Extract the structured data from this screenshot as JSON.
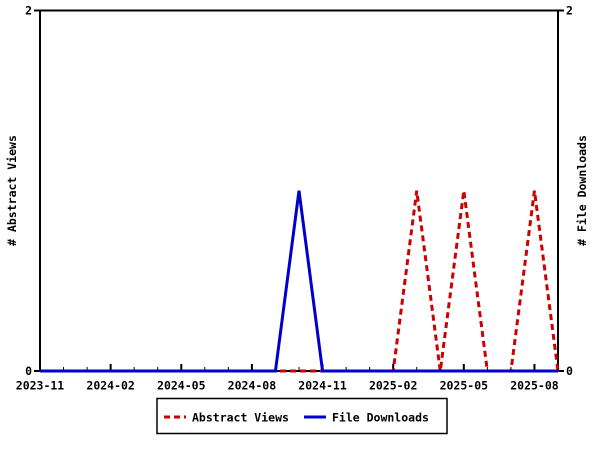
{
  "window": {
    "background": "#ffffff",
    "axis_color": "#000000"
  },
  "chart_data": {
    "type": "line",
    "x": [
      "2023-11",
      "2023-12",
      "2024-01",
      "2024-02",
      "2024-03",
      "2024-04",
      "2024-05",
      "2024-06",
      "2024-07",
      "2024-08",
      "2024-09",
      "2024-10",
      "2024-11",
      "2024-12",
      "2025-01",
      "2025-02",
      "2025-03",
      "2025-04",
      "2025-05",
      "2025-06",
      "2025-07",
      "2025-08",
      "2025-09"
    ],
    "x_tick_labels": [
      "2023-11",
      "2024-02",
      "2024-05",
      "2024-08",
      "2024-11",
      "2025-02",
      "2025-05",
      "2025-08"
    ],
    "x_major_every": 3,
    "ylim": [
      0,
      2
    ],
    "y_tick_values": [
      0,
      2
    ],
    "y_tick_labels": [
      "0",
      "2"
    ],
    "ylabel_left": "# Abstract Views",
    "ylabel_right": "# File Downloads",
    "grid": false,
    "legend_position": "bottom-center",
    "series": [
      {
        "name": "Abstract Views",
        "color": "#cc0000",
        "line_style": "dashed",
        "axis": "left",
        "values": [
          0,
          0,
          0,
          0,
          0,
          0,
          0,
          0,
          0,
          0,
          0,
          0,
          0,
          0,
          0,
          0,
          1,
          0,
          1,
          0,
          0,
          1,
          0
        ]
      },
      {
        "name": "File Downloads",
        "color": "#0000cc",
        "line_style": "solid",
        "axis": "right",
        "values": [
          0,
          0,
          0,
          0,
          0,
          0,
          0,
          0,
          0,
          0,
          0,
          1,
          0,
          0,
          0,
          0,
          0,
          0,
          0,
          0,
          0,
          0,
          0
        ]
      }
    ]
  }
}
